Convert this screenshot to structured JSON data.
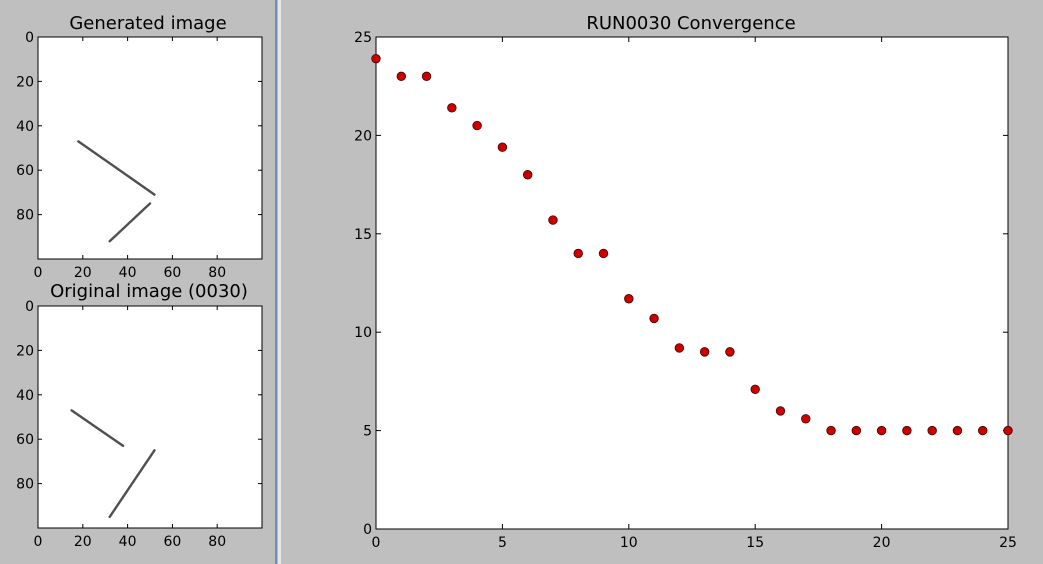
{
  "chart_data": [
    {
      "type": "image",
      "title": "Generated image",
      "xlim": [
        0,
        100
      ],
      "ylim": [
        100,
        0
      ],
      "xticks": [
        0,
        20,
        40,
        60,
        80
      ],
      "yticks": [
        0,
        20,
        40,
        60,
        80
      ],
      "segments": [
        {
          "x1": 18,
          "y1": 47,
          "x2": 52,
          "y2": 71
        },
        {
          "x1": 32,
          "y1": 92,
          "x2": 50,
          "y2": 75
        }
      ],
      "line_color": "#505050"
    },
    {
      "type": "image",
      "title": "Original image (0030)",
      "xlim": [
        0,
        100
      ],
      "ylim": [
        100,
        0
      ],
      "xticks": [
        0,
        20,
        40,
        60,
        80
      ],
      "yticks": [
        0,
        20,
        40,
        60,
        80
      ],
      "segments": [
        {
          "x1": 15,
          "y1": 47,
          "x2": 38,
          "y2": 63
        },
        {
          "x1": 32,
          "y1": 95,
          "x2": 52,
          "y2": 65
        }
      ],
      "line_color": "#505050"
    },
    {
      "type": "scatter",
      "title": "RUN0030 Convergence",
      "xlim": [
        0,
        25
      ],
      "ylim": [
        0,
        25
      ],
      "xticks": [
        0,
        5,
        10,
        15,
        20,
        25
      ],
      "yticks": [
        0,
        5,
        10,
        15,
        20,
        25
      ],
      "x": [
        0,
        1,
        2,
        3,
        4,
        5,
        6,
        7,
        8,
        9,
        10,
        11,
        12,
        13,
        14,
        15,
        16,
        17,
        18,
        19,
        20,
        21,
        22,
        23,
        24,
        25
      ],
      "y": [
        23.9,
        23.0,
        23.0,
        21.4,
        20.5,
        19.4,
        18.0,
        15.7,
        14.0,
        14.0,
        11.7,
        10.7,
        9.2,
        9.0,
        9.0,
        7.1,
        6.0,
        5.6,
        5.0,
        5.0,
        5.0,
        5.0,
        5.0,
        5.0,
        5.0,
        5.0
      ],
      "marker_color": "#cc0000"
    }
  ]
}
